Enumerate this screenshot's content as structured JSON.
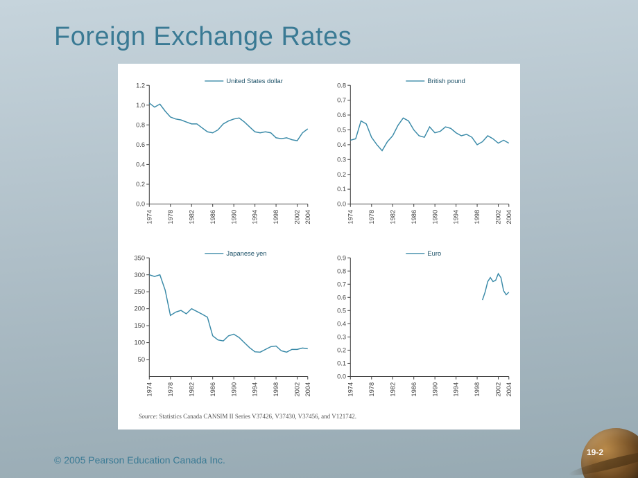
{
  "title": "Foreign Exchange Rates",
  "copyright": "© 2005 Pearson Education Canada Inc.",
  "page_number": "19-2",
  "source_label": "Source",
  "source_text": ": Statistics Canada CANSIM II Series V37426, V37430, V37456, and V121742.",
  "line_color": "#3a8aa8",
  "axis_color": "#444444",
  "background_color": "#ffffff",
  "x_ticks": [
    "1974",
    "1978",
    "1982",
    "1986",
    "1990",
    "1994",
    "1998",
    "2002",
    "2004"
  ],
  "charts": [
    {
      "legend": "United States dollar",
      "ylim": [
        0.0,
        1.2
      ],
      "ytick_step": 0.2,
      "y_ticks": [
        "0.0",
        "0.2",
        "0.4",
        "0.6",
        "0.8",
        "1.0",
        "1.2"
      ],
      "x_start": 1974,
      "x_end": 2004,
      "series_x": [
        1974,
        1975,
        1976,
        1977,
        1978,
        1979,
        1980,
        1981,
        1982,
        1983,
        1984,
        1985,
        1986,
        1987,
        1988,
        1989,
        1990,
        1991,
        1992,
        1993,
        1994,
        1995,
        1996,
        1997,
        1998,
        1999,
        2000,
        2001,
        2002,
        2003,
        2004
      ],
      "series_y": [
        1.02,
        0.98,
        1.01,
        0.94,
        0.88,
        0.86,
        0.85,
        0.83,
        0.81,
        0.81,
        0.77,
        0.73,
        0.72,
        0.75,
        0.81,
        0.84,
        0.86,
        0.87,
        0.83,
        0.78,
        0.73,
        0.72,
        0.73,
        0.72,
        0.67,
        0.66,
        0.67,
        0.65,
        0.64,
        0.72,
        0.76
      ]
    },
    {
      "legend": "British pound",
      "ylim": [
        0.0,
        0.8
      ],
      "ytick_step": 0.1,
      "y_ticks": [
        "0.0",
        "0.1",
        "0.2",
        "0.3",
        "0.4",
        "0.5",
        "0.6",
        "0.7",
        "0.8"
      ],
      "x_start": 1974,
      "x_end": 2004,
      "series_x": [
        1974,
        1975,
        1976,
        1977,
        1978,
        1979,
        1980,
        1981,
        1982,
        1983,
        1984,
        1985,
        1986,
        1987,
        1988,
        1989,
        1990,
        1991,
        1992,
        1993,
        1994,
        1995,
        1996,
        1997,
        1998,
        1999,
        2000,
        2001,
        2002,
        2003,
        2004
      ],
      "series_y": [
        0.43,
        0.44,
        0.56,
        0.54,
        0.45,
        0.4,
        0.36,
        0.42,
        0.46,
        0.53,
        0.58,
        0.56,
        0.5,
        0.46,
        0.45,
        0.52,
        0.48,
        0.49,
        0.52,
        0.51,
        0.48,
        0.46,
        0.47,
        0.45,
        0.4,
        0.42,
        0.46,
        0.44,
        0.41,
        0.43,
        0.41
      ]
    },
    {
      "legend": "Japanese yen",
      "ylim": [
        0,
        350
      ],
      "ytick_step": 50,
      "y_ticks": [
        "50",
        "100",
        "150",
        "200",
        "250",
        "300",
        "350"
      ],
      "x_start": 1974,
      "x_end": 2004,
      "series_x": [
        1974,
        1975,
        1976,
        1977,
        1978,
        1979,
        1980,
        1981,
        1982,
        1983,
        1984,
        1985,
        1986,
        1987,
        1988,
        1989,
        1990,
        1991,
        1992,
        1993,
        1994,
        1995,
        1996,
        1997,
        1998,
        1999,
        2000,
        2001,
        2002,
        2003,
        2004
      ],
      "series_y": [
        300,
        295,
        300,
        255,
        180,
        190,
        195,
        185,
        200,
        192,
        184,
        175,
        120,
        108,
        105,
        120,
        125,
        115,
        100,
        85,
        73,
        72,
        80,
        88,
        90,
        76,
        72,
        80,
        80,
        84,
        82
      ]
    },
    {
      "legend": "Euro",
      "ylim": [
        0.0,
        0.9
      ],
      "ytick_step": 0.1,
      "y_ticks": [
        "0.0",
        "0.1",
        "0.2",
        "0.3",
        "0.4",
        "0.5",
        "0.6",
        "0.7",
        "0.8",
        "0.9"
      ],
      "x_start": 1974,
      "x_end": 2004,
      "series_x": [
        1999,
        1999.5,
        2000,
        2000.5,
        2001,
        2001.5,
        2002,
        2002.5,
        2003,
        2003.5,
        2004
      ],
      "series_y": [
        0.58,
        0.64,
        0.72,
        0.75,
        0.72,
        0.73,
        0.78,
        0.75,
        0.65,
        0.62,
        0.64
      ]
    }
  ]
}
